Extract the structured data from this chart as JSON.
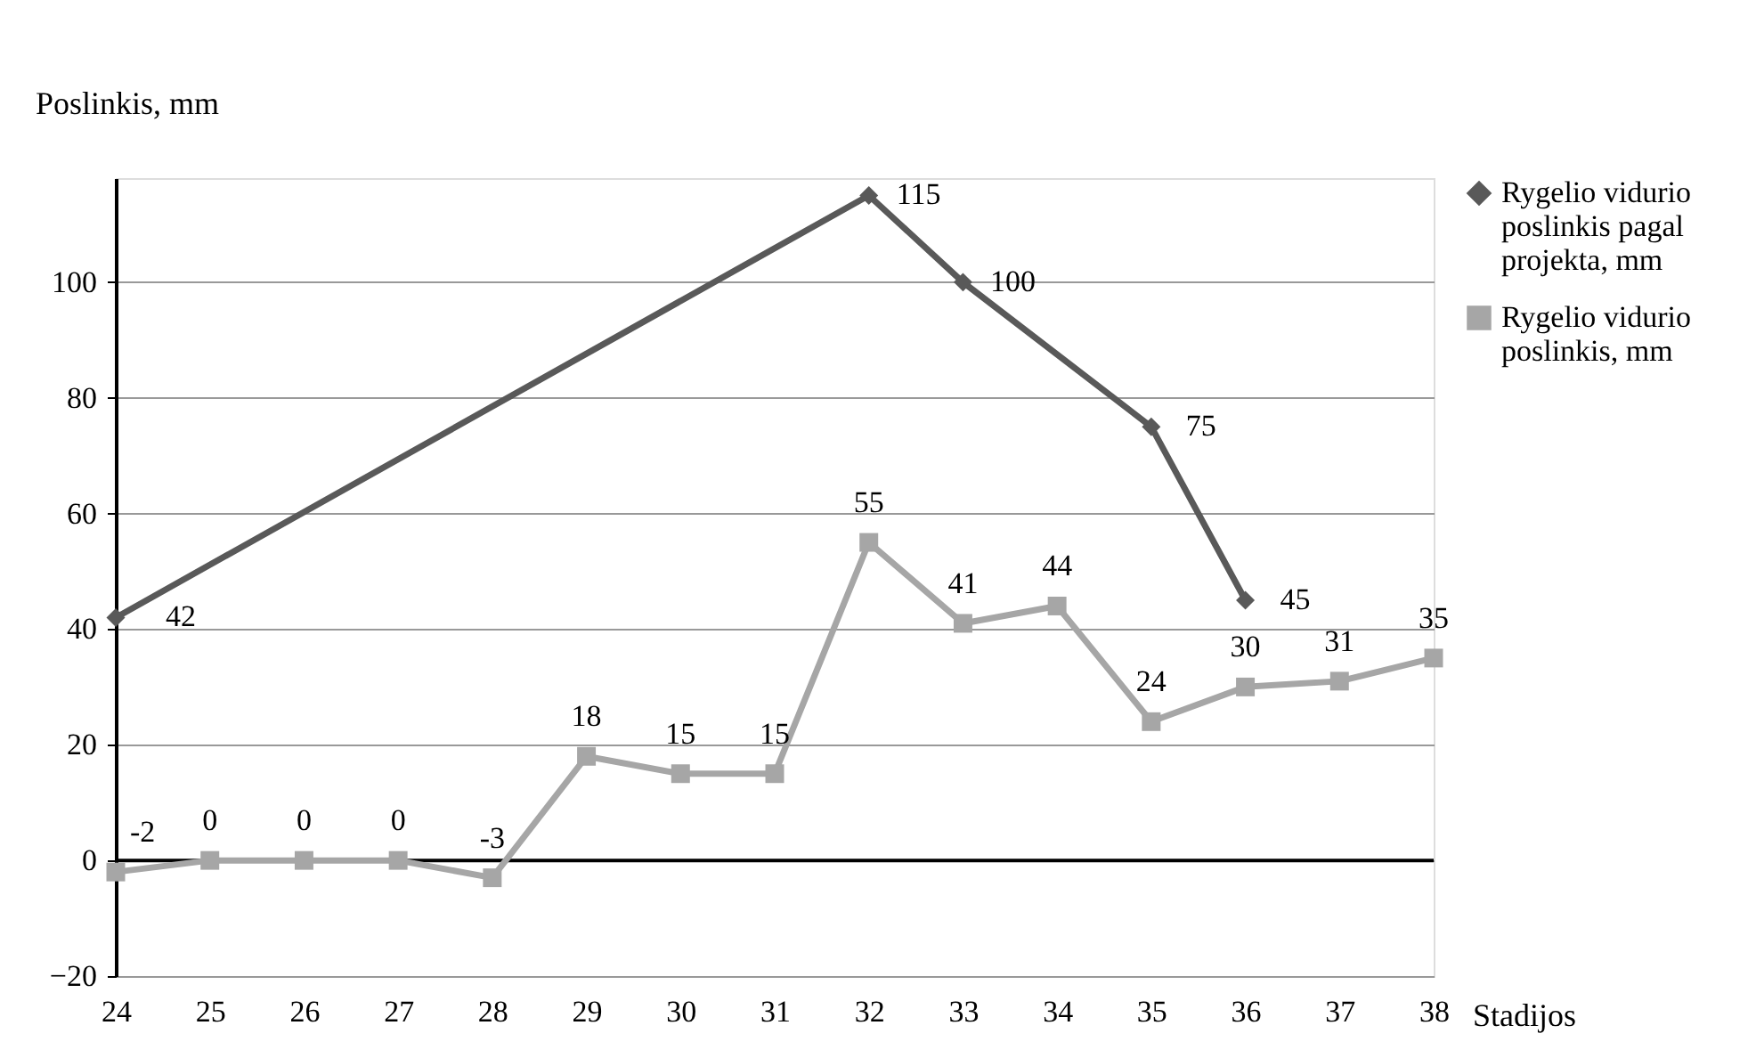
{
  "chart_data": {
    "type": "line",
    "xlabel": "Stadijos",
    "ylabel": "Poslinkis, mm",
    "categories": [
      "24",
      "25",
      "26",
      "27",
      "28",
      "29",
      "30",
      "31",
      "32",
      "33",
      "34",
      "35",
      "36",
      "37",
      "38"
    ],
    "series": [
      {
        "name": "Rygelio vidurio poslinkis pagal projekta, mm",
        "color": "#595959",
        "marker": "diamond",
        "values": [
          42,
          null,
          null,
          null,
          null,
          null,
          null,
          null,
          115,
          100,
          null,
          75,
          45,
          null,
          null
        ]
      },
      {
        "name": "Rygelio vidurio poslinkis, mm",
        "color": "#a6a6a6",
        "marker": "square",
        "values": [
          -2,
          0,
          0,
          0,
          -3,
          18,
          15,
          15,
          55,
          41,
          44,
          24,
          30,
          31,
          35
        ]
      }
    ],
    "ylim": [
      -20,
      118
    ],
    "yticks": [
      -20,
      0,
      20,
      40,
      60,
      80,
      100
    ],
    "grid": "y",
    "legend": "right",
    "data_labels": true,
    "line_style": "solid"
  }
}
